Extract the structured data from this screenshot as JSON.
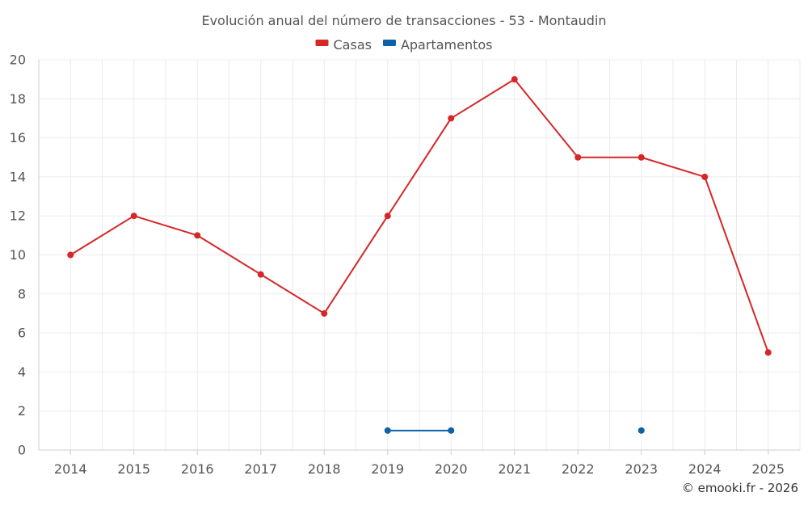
{
  "chart_data": {
    "type": "line",
    "title": "Evolución anual del número de transacciones - 53 - Montaudin",
    "xlabel": "",
    "ylabel": "",
    "categories": [
      "2014",
      "2015",
      "2016",
      "2017",
      "2018",
      "2019",
      "2020",
      "2021",
      "2022",
      "2023",
      "2024",
      "2025"
    ],
    "ylim": [
      0,
      20
    ],
    "yticks": [
      0,
      2,
      4,
      6,
      8,
      10,
      12,
      14,
      16,
      18,
      20
    ],
    "grid": true,
    "legend_position": "top-center",
    "series": [
      {
        "name": "Casas",
        "color": "#d62728",
        "values": [
          10,
          12,
          11,
          9,
          7,
          12,
          17,
          19,
          15,
          15,
          14,
          5
        ]
      },
      {
        "name": "Apartamentos",
        "color": "#0b62a4",
        "values": [
          null,
          null,
          null,
          null,
          null,
          1,
          1,
          null,
          null,
          1,
          null,
          null
        ]
      }
    ],
    "credit": "© emooki.fr - 2026"
  }
}
